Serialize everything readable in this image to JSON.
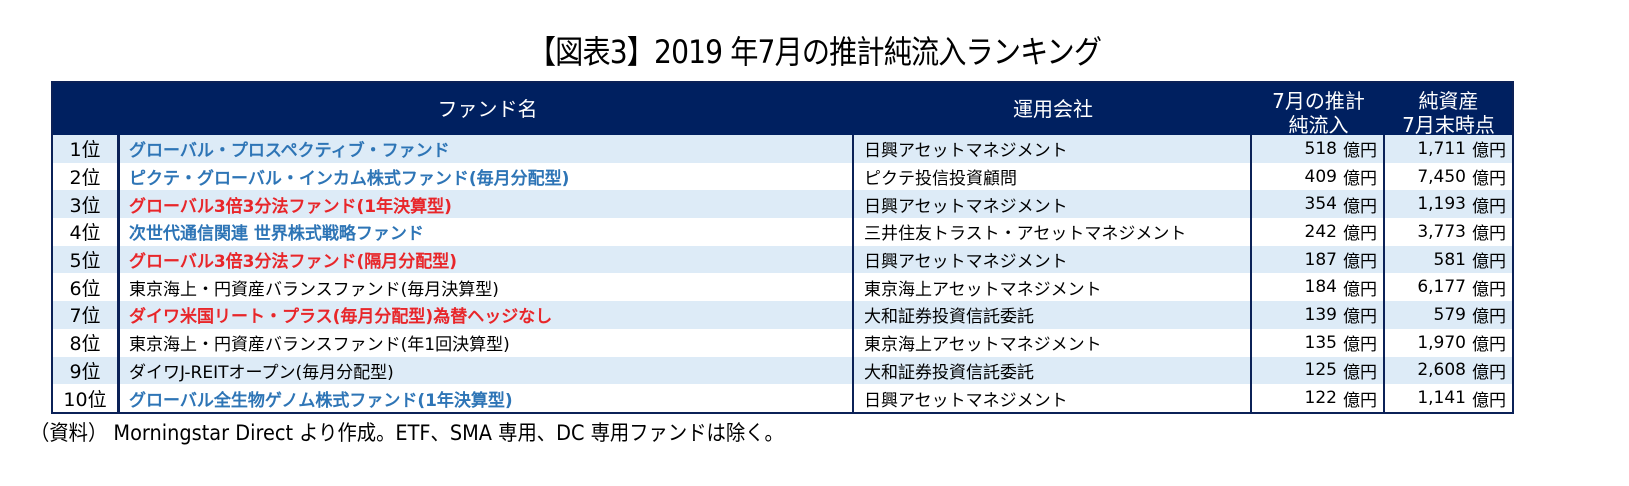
{
  "title": "【図表3】2019 年7月の推計純流入ランキング",
  "table": {
    "headers": {
      "fund_name": "ファンド名",
      "company": "運用会社",
      "inflow_line1": "7月の推計",
      "inflow_line2": "純流入",
      "assets_line1": "純資産",
      "assets_line2": "7月末時点"
    },
    "unit": "億円",
    "rows": [
      {
        "rank": "1位",
        "fund": "グローバル・プロスペクティブ・ファンド",
        "company": "日興アセットマネジメント",
        "inflow": "518",
        "assets": "1,711",
        "style": "blue"
      },
      {
        "rank": "2位",
        "fund": "ピクテ・グローバル・インカム株式ファンド(毎月分配型)",
        "company": "ピクテ投信投資顧問",
        "inflow": "409",
        "assets": "7,450",
        "style": "blue"
      },
      {
        "rank": "3位",
        "fund": "グローバル3倍3分法ファンド(1年決算型)",
        "company": "日興アセットマネジメント",
        "inflow": "354",
        "assets": "1,193",
        "style": "red"
      },
      {
        "rank": "4位",
        "fund": "次世代通信関連 世界株式戦略ファンド",
        "company": "三井住友トラスト・アセットマネジメント",
        "inflow": "242",
        "assets": "3,773",
        "style": "blue"
      },
      {
        "rank": "5位",
        "fund": "グローバル3倍3分法ファンド(隔月分配型)",
        "company": "日興アセットマネジメント",
        "inflow": "187",
        "assets": "581",
        "style": "red"
      },
      {
        "rank": "6位",
        "fund": "東京海上・円資産バランスファンド(毎月決算型)",
        "company": "東京海上アセットマネジメント",
        "inflow": "184",
        "assets": "6,177",
        "style": "plain"
      },
      {
        "rank": "7位",
        "fund": "ダイワ米国リート・プラス(毎月分配型)為替ヘッジなし",
        "company": "大和証券投資信託委託",
        "inflow": "139",
        "assets": "579",
        "style": "red"
      },
      {
        "rank": "8位",
        "fund": "東京海上・円資産バランスファンド(年1回決算型)",
        "company": "東京海上アセットマネジメント",
        "inflow": "135",
        "assets": "1,970",
        "style": "plain"
      },
      {
        "rank": "9位",
        "fund": "ダイワJ-REITオープン(毎月分配型)",
        "company": "大和証券投資信託委託",
        "inflow": "125",
        "assets": "2,608",
        "style": "plain"
      },
      {
        "rank": "10位",
        "fund": "グローバル全生物ゲノム株式ファンド(1年決算型)",
        "company": "日興アセットマネジメント",
        "inflow": "122",
        "assets": "1,141",
        "style": "blue"
      }
    ]
  },
  "note": "（資料） Morningstar Direct より作成。ETF、SMA 専用、DC 専用ファンドは除く。",
  "colors": {
    "header_bg": "#002060",
    "alt_row_bg": "#ddebf7",
    "blue_text": "#2e75b6",
    "red_text": "#e8262a"
  }
}
